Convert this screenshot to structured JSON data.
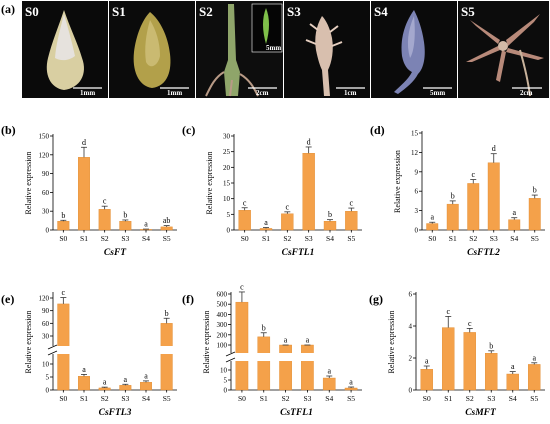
{
  "figure_label": "(a)",
  "photos": [
    {
      "label": "S0",
      "scale": "1mm",
      "bg": "#0a0a0a"
    },
    {
      "label": "S1",
      "scale": "1mm",
      "bg": "#0b0b0b"
    },
    {
      "label": "S2",
      "scale": "2cm",
      "inset_scale": "5mm",
      "bg": "#0d0d0d"
    },
    {
      "label": "S3",
      "scale": "1cm",
      "bg": "#0a0a0a"
    },
    {
      "label": "S4",
      "scale": "5mm",
      "bg": "#0a0a0a"
    },
    {
      "label": "S5",
      "scale": "2cm",
      "bg": "#0c0c0c"
    }
  ],
  "colors": {
    "bar": "#f4a14a",
    "bar_edge": "#e08a2e",
    "axis": "#000000"
  },
  "chart_data": [
    {
      "panel": "(b)",
      "type": "bar",
      "gene": "CsFT",
      "ylabel": "Relative expression",
      "categories": [
        "S0",
        "S1",
        "S2",
        "S3",
        "S4",
        "S5"
      ],
      "values": [
        14,
        116,
        33,
        14,
        1,
        5
      ],
      "errors": [
        1.5,
        16,
        5,
        2,
        0.5,
        2
      ],
      "letters": [
        "b",
        "d",
        "c",
        "b",
        "a",
        "ab"
      ],
      "ylim": [
        0,
        150
      ],
      "yticks": [
        0,
        30,
        60,
        90,
        120,
        150
      ]
    },
    {
      "panel": "(c)",
      "type": "bar",
      "gene": "CsFTL1",
      "ylabel": "Relative expression",
      "categories": [
        "S0",
        "S1",
        "S2",
        "S3",
        "S4",
        "S5"
      ],
      "values": [
        6.3,
        0.5,
        5.2,
        24.5,
        2.8,
        6.0
      ],
      "errors": [
        0.8,
        0.3,
        0.6,
        2.0,
        0.5,
        1.0
      ],
      "letters": [
        "c",
        "a",
        "c",
        "d",
        "b",
        "c"
      ],
      "ylim": [
        0,
        30
      ],
      "yticks": [
        0,
        5,
        10,
        15,
        20,
        25,
        30
      ]
    },
    {
      "panel": "(d)",
      "type": "bar",
      "gene": "CsFTL2",
      "ylabel": "Relative expression",
      "categories": [
        "S0",
        "S1",
        "S2",
        "S3",
        "S4",
        "S5"
      ],
      "values": [
        1.0,
        4.0,
        7.2,
        10.4,
        1.6,
        4.9
      ],
      "errors": [
        0.2,
        0.5,
        0.6,
        1.4,
        0.3,
        0.5
      ],
      "letters": [
        "a",
        "b",
        "c",
        "d",
        "a",
        "b"
      ],
      "ylim": [
        0,
        15
      ],
      "yticks": [
        0,
        3,
        6,
        9,
        12,
        15
      ]
    },
    {
      "panel": "(e)",
      "type": "bar",
      "gene": "CsFTL3",
      "ylabel": "Relative expression",
      "categories": [
        "S0",
        "S1",
        "S2",
        "S3",
        "S4",
        "S5"
      ],
      "values": [
        106,
        5.3,
        0.8,
        1.8,
        3.0,
        60
      ],
      "errors": [
        15,
        0.7,
        0.3,
        0.4,
        0.5,
        12
      ],
      "letters": [
        "c",
        "a",
        "a",
        "a",
        "a",
        "b"
      ],
      "yticks": [
        0,
        5,
        10,
        30,
        60,
        90,
        120
      ]
    },
    {
      "panel": "(f)",
      "type": "bar",
      "gene": "CsTFL1",
      "ylabel": "Relative expression",
      "categories": [
        "S0",
        "S1",
        "S2",
        "S3",
        "S4",
        "S5"
      ],
      "values": [
        520,
        180,
        50,
        60,
        6,
        1
      ],
      "errors": [
        100,
        40,
        15,
        20,
        1,
        0.5
      ],
      "letters": [
        "c",
        "b",
        "a",
        "a",
        "a",
        "a"
      ],
      "yticks": [
        0,
        5,
        10,
        100,
        200,
        300,
        400,
        500,
        600
      ]
    },
    {
      "panel": "(g)",
      "type": "bar",
      "gene": "CsMFT",
      "ylabel": "Relative expression",
      "categories": [
        "S0",
        "S1",
        "S2",
        "S3",
        "S4",
        "S5"
      ],
      "values": [
        1.3,
        3.9,
        3.6,
        2.3,
        1.0,
        1.6
      ],
      "errors": [
        0.2,
        0.7,
        0.25,
        0.15,
        0.15,
        0.1
      ],
      "letters": [
        "a",
        "c",
        "c",
        "b",
        "a",
        "a"
      ],
      "ylim": [
        0,
        6
      ],
      "yticks": [
        0,
        2,
        4,
        6
      ]
    }
  ]
}
